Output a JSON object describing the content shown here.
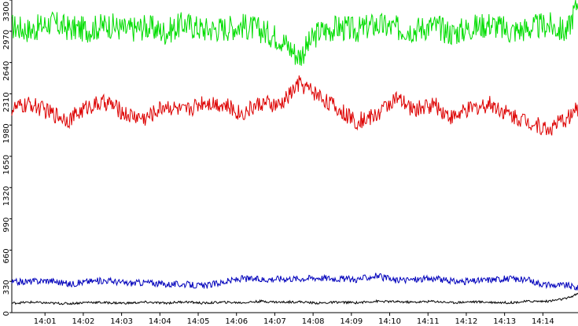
{
  "chart_data": {
    "type": "line",
    "title": "",
    "xlabel": "",
    "ylabel": "",
    "ylim": [
      0,
      3300
    ],
    "yticks": [
      0,
      330,
      660,
      990,
      1320,
      1650,
      1980,
      2310,
      2640,
      2970,
      3300
    ],
    "ytick_labels": [
      "0",
      "330",
      "660",
      "990",
      "1320",
      "1650",
      "1980",
      "2310",
      "2640",
      "2970",
      "3300"
    ],
    "xtick_labels": [
      "14:01",
      "14:02",
      "14:03",
      "14:04",
      "14:05",
      "14:06",
      "14:07",
      "14:08",
      "14:09",
      "14:10",
      "14:11",
      "14:12",
      "14:13",
      "14:14"
    ],
    "xlim": [
      "14:00:08",
      "14:14:55"
    ],
    "grid": false,
    "legend": "none",
    "series": [
      {
        "color": "#00dd00",
        "x": [
          "14:00:08",
          "14:00:38",
          "14:01:08",
          "14:01:38",
          "14:02:08",
          "14:02:38",
          "14:03:08",
          "14:03:38",
          "14:04:08",
          "14:04:38",
          "14:05:08",
          "14:05:38",
          "14:06:08",
          "14:06:38",
          "14:07:08",
          "14:07:38",
          "14:08:08",
          "14:08:38",
          "14:09:08",
          "14:09:38",
          "14:10:08",
          "14:10:38",
          "14:11:08",
          "14:11:38",
          "14:12:08",
          "14:12:38",
          "14:13:08",
          "14:13:38",
          "14:14:08",
          "14:14:38",
          "14:14:55"
        ],
        "values": [
          3020,
          2980,
          3060,
          3000,
          2990,
          3040,
          2980,
          3020,
          2960,
          3050,
          2990,
          3000,
          3030,
          2980,
          2900,
          2700,
          2960,
          3010,
          2980,
          3040,
          3000,
          2990,
          3030,
          2950,
          3010,
          3050,
          2970,
          3000,
          3040,
          2960,
          3300
        ]
      },
      {
        "color": "#dd0000",
        "x": [
          "14:00:08",
          "14:00:38",
          "14:01:08",
          "14:01:38",
          "14:02:08",
          "14:02:38",
          "14:03:08",
          "14:03:38",
          "14:04:08",
          "14:04:38",
          "14:05:08",
          "14:05:38",
          "14:06:08",
          "14:06:38",
          "14:07:08",
          "14:07:38",
          "14:08:08",
          "14:08:38",
          "14:09:08",
          "14:09:38",
          "14:10:08",
          "14:10:38",
          "14:11:08",
          "14:11:38",
          "14:12:08",
          "14:12:38",
          "14:13:08",
          "14:13:38",
          "14:14:08",
          "14:14:38",
          "14:14:55"
        ],
        "values": [
          2150,
          2200,
          2110,
          2040,
          2180,
          2220,
          2090,
          2050,
          2190,
          2120,
          2230,
          2200,
          2100,
          2210,
          2180,
          2420,
          2300,
          2150,
          2020,
          2080,
          2260,
          2140,
          2200,
          2060,
          2150,
          2210,
          2090,
          2020,
          1930,
          2050,
          2150
        ]
      },
      {
        "color": "#0000bb",
        "x": [
          "14:00:08",
          "14:00:38",
          "14:01:08",
          "14:01:38",
          "14:02:08",
          "14:02:38",
          "14:03:08",
          "14:03:38",
          "14:04:08",
          "14:04:38",
          "14:05:08",
          "14:05:38",
          "14:06:08",
          "14:06:38",
          "14:07:08",
          "14:07:38",
          "14:08:08",
          "14:08:38",
          "14:09:08",
          "14:09:38",
          "14:10:08",
          "14:10:38",
          "14:11:08",
          "14:11:38",
          "14:12:08",
          "14:12:38",
          "14:13:08",
          "14:13:38",
          "14:14:08",
          "14:14:38",
          "14:14:55"
        ],
        "values": [
          320,
          330,
          340,
          300,
          330,
          340,
          310,
          320,
          300,
          300,
          280,
          320,
          360,
          350,
          360,
          360,
          370,
          360,
          350,
          390,
          340,
          350,
          360,
          330,
          330,
          350,
          360,
          340,
          290,
          290,
          260
        ]
      },
      {
        "color": "#000000",
        "x": [
          "14:00:08",
          "14:00:38",
          "14:01:08",
          "14:01:38",
          "14:02:08",
          "14:02:38",
          "14:03:08",
          "14:03:38",
          "14:04:08",
          "14:04:38",
          "14:05:08",
          "14:05:38",
          "14:06:08",
          "14:06:38",
          "14:07:08",
          "14:07:38",
          "14:08:08",
          "14:08:38",
          "14:09:08",
          "14:09:38",
          "14:10:08",
          "14:10:38",
          "14:11:08",
          "14:11:38",
          "14:12:08",
          "14:12:38",
          "14:13:08",
          "14:13:38",
          "14:14:08",
          "14:14:38",
          "14:14:55"
        ],
        "values": [
          100,
          110,
          100,
          95,
          110,
          105,
          100,
          110,
          100,
          115,
          100,
          110,
          105,
          120,
          110,
          115,
          100,
          110,
          105,
          120,
          115,
          110,
          120,
          105,
          115,
          110,
          105,
          120,
          120,
          150,
          200
        ]
      }
    ]
  }
}
